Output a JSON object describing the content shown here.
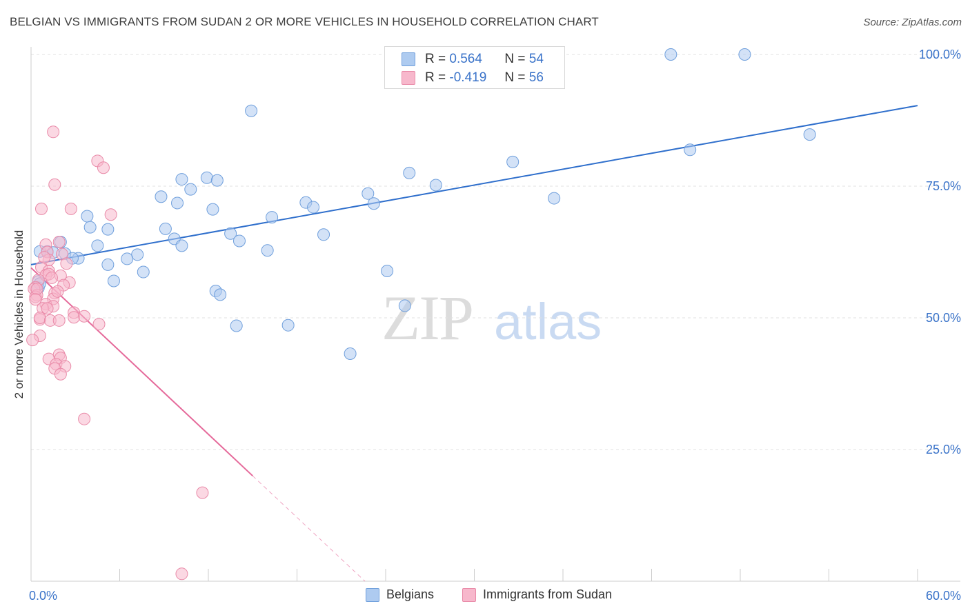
{
  "title": "BELGIAN VS IMMIGRANTS FROM SUDAN 2 OR MORE VEHICLES IN HOUSEHOLD CORRELATION CHART",
  "source": "Source: ZipAtlas.com",
  "watermark": {
    "zip": "ZIP",
    "atlas": "atlas"
  },
  "legend_top": {
    "rows": [
      {
        "r_label": "R =",
        "r_value": "0.564",
        "n_label": "N =",
        "n_value": "54"
      },
      {
        "r_label": "R =",
        "r_value": "-0.419",
        "n_label": "N =",
        "n_value": "56"
      }
    ]
  },
  "legend_bottom": {
    "items": [
      "Belgians",
      "Immigrants from Sudan"
    ]
  },
  "colors": {
    "belgian_fill": "#aecbf0",
    "belgian_stroke": "#6f9fdc",
    "belgian_line": "#2f6fcc",
    "sudan_fill": "#f7b8cc",
    "sudan_stroke": "#e98aa8",
    "sudan_line": "#e5699a",
    "axis_label": "#3a73c9",
    "grid": "#e0e0e0"
  },
  "chart_data": {
    "type": "scatter",
    "ylabel": "2 or more Vehicles in Household",
    "xlim": [
      0,
      60
    ],
    "ylim": [
      0,
      100
    ],
    "x_tick_labels": [
      "0.0%",
      "60.0%"
    ],
    "y_ticks": [
      25,
      50,
      75,
      100
    ],
    "y_tick_labels": [
      "25.0%",
      "50.0%",
      "75.0%",
      "100.0%"
    ],
    "grid": true,
    "legend_position": "top-center",
    "series": [
      {
        "name": "Belgians",
        "points": [
          [
            43.3,
            100
          ],
          [
            48.3,
            100
          ],
          [
            14.9,
            89.3
          ],
          [
            52.7,
            84.8
          ],
          [
            44.6,
            81.9
          ],
          [
            32.6,
            79.6
          ],
          [
            25.6,
            77.5
          ],
          [
            27.4,
            75.2
          ],
          [
            11.9,
            76.6
          ],
          [
            10.2,
            76.3
          ],
          [
            12.6,
            76.1
          ],
          [
            10.8,
            74.4
          ],
          [
            8.8,
            73
          ],
          [
            22.8,
            73.6
          ],
          [
            35.4,
            72.7
          ],
          [
            18.6,
            71.9
          ],
          [
            19.1,
            71
          ],
          [
            9.9,
            71.8
          ],
          [
            23.2,
            71.7
          ],
          [
            12.3,
            70.6
          ],
          [
            16.3,
            69.1
          ],
          [
            3.8,
            69.3
          ],
          [
            5.2,
            66.8
          ],
          [
            4.0,
            67.2
          ],
          [
            9.1,
            66.9
          ],
          [
            13.5,
            66
          ],
          [
            19.8,
            65.8
          ],
          [
            14.1,
            64.6
          ],
          [
            9.7,
            65
          ],
          [
            2.0,
            64.4
          ],
          [
            4.5,
            63.7
          ],
          [
            10.2,
            63.7
          ],
          [
            0.6,
            62.6
          ],
          [
            1.1,
            62.6
          ],
          [
            2.3,
            62.2
          ],
          [
            16.0,
            62.8
          ],
          [
            7.2,
            62.0
          ],
          [
            6.5,
            61.2
          ],
          [
            3.2,
            61.3
          ],
          [
            2.8,
            61.3
          ],
          [
            5.2,
            60.1
          ],
          [
            7.6,
            58.7
          ],
          [
            24.1,
            58.9
          ],
          [
            5.6,
            57
          ],
          [
            0.5,
            56.9
          ],
          [
            12.5,
            55.1
          ],
          [
            12.8,
            54.4
          ],
          [
            25.3,
            52.3
          ],
          [
            13.9,
            48.5
          ],
          [
            17.4,
            48.6
          ],
          [
            21.6,
            43.2
          ],
          [
            0.5,
            55.7
          ],
          [
            0.6,
            56.5
          ],
          [
            1.5,
            62.4
          ]
        ]
      },
      {
        "name": "Immigrants from Sudan",
        "points": [
          [
            1.5,
            85.3
          ],
          [
            4.5,
            79.8
          ],
          [
            4.9,
            78.5
          ],
          [
            1.6,
            75.3
          ],
          [
            0.7,
            70.7
          ],
          [
            2.7,
            70.7
          ],
          [
            5.4,
            69.6
          ],
          [
            1.9,
            64.4
          ],
          [
            1.0,
            63.9
          ],
          [
            1.1,
            62.5
          ],
          [
            2.1,
            62.1
          ],
          [
            1.2,
            61.0
          ],
          [
            2.4,
            60.3
          ],
          [
            0.7,
            59.6
          ],
          [
            1.2,
            58.9
          ],
          [
            1.0,
            58.1
          ],
          [
            1.2,
            58.3
          ],
          [
            2.0,
            58.0
          ],
          [
            1.4,
            57.6
          ],
          [
            2.6,
            56.7
          ],
          [
            0.5,
            57.2
          ],
          [
            0.3,
            55.8
          ],
          [
            0.2,
            55.5
          ],
          [
            1.6,
            54.7
          ],
          [
            0.4,
            54.3
          ],
          [
            0.3,
            54.0
          ],
          [
            1.5,
            53.6
          ],
          [
            1.0,
            52.6
          ],
          [
            1.5,
            52.2
          ],
          [
            0.8,
            51.8
          ],
          [
            1.1,
            51.8
          ],
          [
            2.9,
            51.0
          ],
          [
            2.9,
            50.1
          ],
          [
            3.6,
            50.3
          ],
          [
            0.6,
            49.7
          ],
          [
            0.6,
            50.0
          ],
          [
            1.3,
            49.5
          ],
          [
            1.9,
            49.5
          ],
          [
            4.6,
            48.8
          ],
          [
            0.6,
            46.6
          ],
          [
            0.1,
            45.8
          ],
          [
            1.9,
            43
          ],
          [
            1.2,
            42.2
          ],
          [
            2.0,
            42.4
          ],
          [
            1.7,
            41.2
          ],
          [
            2.3,
            40.8
          ],
          [
            1.6,
            40.4
          ],
          [
            2.0,
            39.3
          ],
          [
            3.6,
            30.8
          ],
          [
            11.6,
            16.8
          ],
          [
            10.2,
            1.4
          ],
          [
            0.4,
            55.5
          ],
          [
            0.9,
            61.5
          ],
          [
            2.2,
            56.2
          ],
          [
            0.3,
            53.5
          ],
          [
            1.8,
            55.0
          ]
        ]
      }
    ],
    "trend_lines": [
      {
        "series": "Belgians",
        "x": [
          0,
          60
        ],
        "y": [
          60.1,
          90.3
        ],
        "style": "solid"
      },
      {
        "series": "Immigrants from Sudan",
        "x": [
          0,
          15
        ],
        "y": [
          59.5,
          20.0
        ],
        "style": "solid"
      },
      {
        "series": "Immigrants from Sudan",
        "x": [
          15,
          22.6
        ],
        "y": [
          20.0,
          0
        ],
        "style": "dashed"
      }
    ]
  }
}
